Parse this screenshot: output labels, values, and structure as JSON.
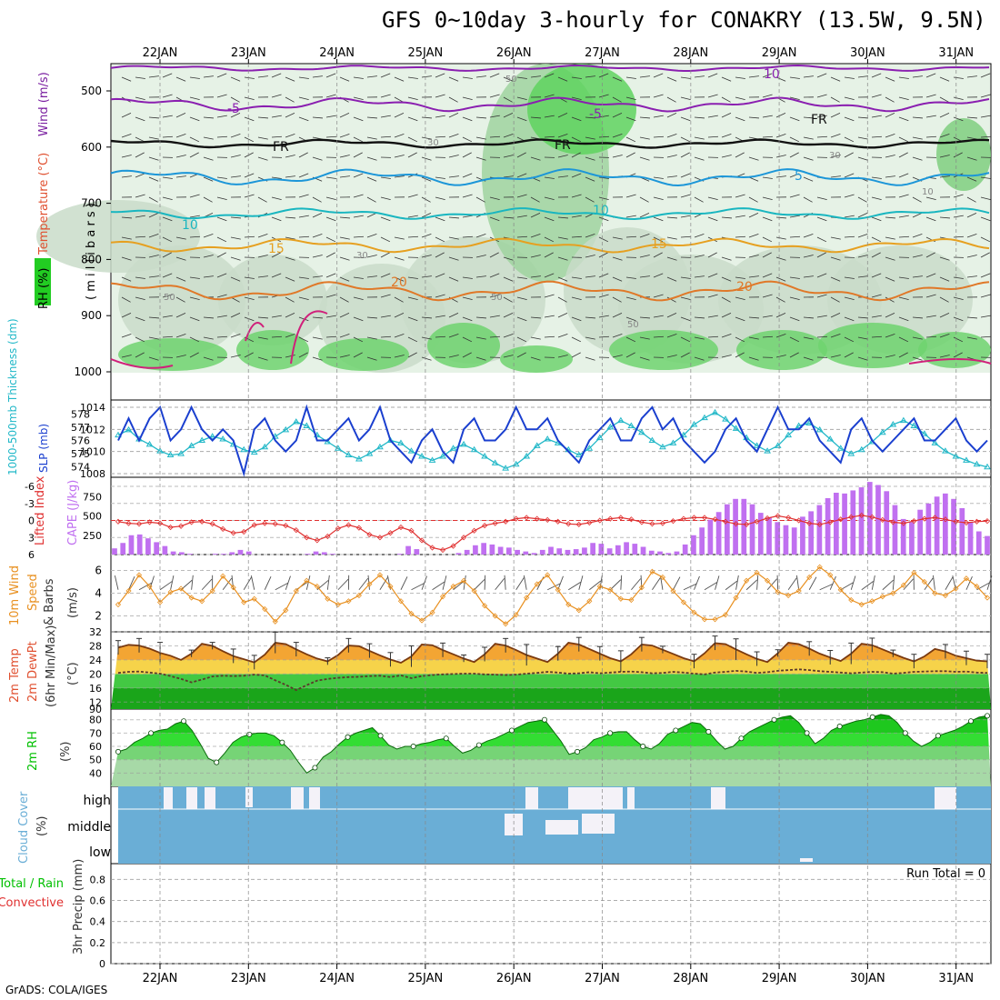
{
  "title": "GFS 0~10day 3-hourly for CONAKRY (13.5W, 9.5N)",
  "credit": "GrADS: COLA/IGES",
  "colors": {
    "slp": "#1a3fcf",
    "thickness": "#22b8c8",
    "li": "#e03030",
    "cape": "#c070f0",
    "wind_speed": "#e89020",
    "barb": "#505050",
    "temp_line": "#7a3a10",
    "rh_green": "#00c000",
    "cloud_blue": "#6aaed6",
    "cloud_white": "#f4f2f8",
    "label_rh": "#22aa22",
    "label_temp": "#e05030",
    "label_wind": "#7a1fa0"
  },
  "chart_data": {
    "type": "meteogram",
    "x_dates": [
      "22JAN",
      "23JAN",
      "24JAN",
      "25JAN",
      "26JAN",
      "27JAN",
      "28JAN",
      "29JAN",
      "30JAN",
      "31JAN"
    ],
    "panels": [
      {
        "id": "upper_air",
        "ylabel_parts": [
          "RH (%)",
          "Temperature (°C)",
          "Wind (m/s)",
          "( m i l l i b a r s )"
        ],
        "y_ticks": [
          500,
          600,
          700,
          800,
          900,
          1000
        ],
        "contour_labels": [
          {
            "text": "-5",
            "color": "purple"
          },
          {
            "text": "-5",
            "color": "purple"
          },
          {
            "text": "10",
            "color": "purple"
          },
          {
            "text": "FR",
            "color": "black"
          },
          {
            "text": "FR",
            "color": "black"
          },
          {
            "text": "FR",
            "color": "black"
          },
          {
            "text": "5",
            "color": "blue"
          },
          {
            "text": "10",
            "color": "teal"
          },
          {
            "text": "10",
            "color": "teal"
          },
          {
            "text": "15",
            "color": "orange"
          },
          {
            "text": "15",
            "color": "orange"
          },
          {
            "text": "20",
            "color": "darkorange"
          },
          {
            "text": "20",
            "color": "darkorange"
          },
          {
            "text": "50",
            "color": "gray"
          },
          {
            "text": "50",
            "color": "gray"
          },
          {
            "text": "50",
            "color": "gray"
          },
          {
            "text": "50",
            "color": "gray"
          },
          {
            "text": "30",
            "color": "gray"
          },
          {
            "text": "30",
            "color": "gray"
          },
          {
            "text": "30",
            "color": "gray"
          },
          {
            "text": "10",
            "color": "gray"
          }
        ]
      },
      {
        "id": "slp_thickness",
        "ylabel_left": "1000-500mb Thickness (dm)",
        "ylabel_right": "SLP (mb)",
        "thick_ticks": [
          574,
          575,
          576,
          577,
          578
        ],
        "slp_ticks": [
          1008,
          1010,
          1012,
          1014
        ],
        "slp": [
          1011,
          1013,
          1011,
          1013,
          1014,
          1011,
          1012,
          1014,
          1012,
          1011,
          1012,
          1011,
          1008,
          1012,
          1013,
          1011,
          1010,
          1011,
          1014,
          1011,
          1011,
          1012,
          1013,
          1011,
          1012,
          1014,
          1011,
          1010,
          1009,
          1011,
          1012,
          1010,
          1009,
          1012,
          1013,
          1011,
          1011,
          1012,
          1014,
          1012,
          1012,
          1013,
          1011,
          1010,
          1009,
          1011,
          1012,
          1013,
          1011,
          1011,
          1013,
          1014,
          1012,
          1013,
          1011,
          1010,
          1009,
          1010,
          1012,
          1013,
          1011,
          1010,
          1012,
          1014,
          1012,
          1012,
          1013,
          1011,
          1010,
          1009,
          1012,
          1013,
          1011,
          1010,
          1011,
          1012,
          1013,
          1011,
          1011,
          1012,
          1013,
          1011,
          1010,
          1011
        ],
        "thickness": [
          576.4,
          576.8,
          576.1,
          575.7,
          575.2,
          574.9,
          575.0,
          575.6,
          576.0,
          576.3,
          576.1,
          575.7,
          575.3,
          575.1,
          575.5,
          576.3,
          576.8,
          577.4,
          577.1,
          576.4,
          575.9,
          575.4,
          574.9,
          574.6,
          575.0,
          575.5,
          576.0,
          575.8,
          575.2,
          574.8,
          574.5,
          574.8,
          575.4,
          575.7,
          575.3,
          574.8,
          574.3,
          573.9,
          574.2,
          574.8,
          575.6,
          576.1,
          575.8,
          575.3,
          574.9,
          575.4,
          576.2,
          577.0,
          577.5,
          577.1,
          576.6,
          576.0,
          575.5,
          575.8,
          576.4,
          577.2,
          577.7,
          578.1,
          577.6,
          576.9,
          576.2,
          575.6,
          575.2,
          575.6,
          576.4,
          577.1,
          577.3,
          576.8,
          576.1,
          575.4,
          575.0,
          575.3,
          575.9,
          576.6,
          577.2,
          577.5,
          577.1,
          576.5,
          575.8,
          575.2,
          574.8,
          574.5,
          574.2,
          574.0
        ]
      },
      {
        "id": "li_cape",
        "ylabel_left": "Lifted Index",
        "ylabel_right": "CAPE (J/kg)",
        "li_ticks": [
          -6,
          -3,
          0,
          3,
          6
        ],
        "cape_ticks": [
          250,
          500,
          750
        ],
        "li": [
          0.2,
          0.5,
          0.6,
          0.3,
          0.5,
          1.2,
          1.0,
          0.3,
          0.2,
          0.6,
          1.5,
          2.2,
          2.0,
          0.8,
          0.5,
          0.6,
          0.9,
          1.7,
          3.0,
          3.5,
          2.8,
          1.4,
          0.8,
          1.3,
          2.5,
          3.0,
          2.2,
          1.2,
          1.8,
          3.5,
          4.8,
          5.2,
          4.5,
          3.0,
          1.8,
          0.9,
          0.5,
          0.2,
          -0.3,
          -0.5,
          -0.3,
          -0.1,
          0.2,
          0.6,
          0.7,
          0.4,
          0.0,
          -0.3,
          -0.5,
          -0.2,
          0.3,
          0.6,
          0.5,
          0.1,
          -0.3,
          -0.5,
          -0.5,
          -0.2,
          0.2,
          0.6,
          0.7,
          0.2,
          -0.4,
          -0.8,
          -0.5,
          0.0,
          0.5,
          0.7,
          0.3,
          -0.2,
          -0.6,
          -0.9,
          -0.6,
          -0.1,
          0.3,
          0.5,
          0.1,
          -0.3,
          -0.5,
          -0.2,
          0.2,
          0.4,
          0.2,
          0.1
        ],
        "cape": [
          80,
          150,
          250,
          260,
          210,
          160,
          110,
          40,
          30,
          10,
          0,
          0,
          10,
          10,
          30,
          60,
          40,
          0,
          0,
          0,
          0,
          0,
          0,
          10,
          40,
          30,
          10,
          0,
          0,
          0,
          0,
          0,
          0,
          0,
          10,
          110,
          70,
          0,
          0,
          0,
          0,
          20,
          60,
          120,
          150,
          130,
          100,
          90,
          60,
          40,
          20,
          60,
          100,
          80,
          60,
          70,
          90,
          150,
          140,
          80,
          120,
          160,
          140,
          100,
          50,
          40,
          20,
          40,
          130,
          250,
          350,
          450,
          550,
          650,
          720,
          720,
          650,
          540,
          480,
          420,
          380,
          350,
          490,
          560,
          640,
          730,
          800,
          790,
          830,
          870,
          940,
          900,
          820,
          640,
          460,
          420,
          580,
          660,
          750,
          790,
          720,
          600,
          420,
          300,
          240
        ]
      },
      {
        "id": "wind10m",
        "ylabel_parts": [
          "10m Wind",
          "Speed",
          "& Barbs",
          "(m/s)"
        ],
        "y_ticks": [
          2,
          4,
          6
        ],
        "speed": [
          3.0,
          4.2,
          5.6,
          4.6,
          3.2,
          4.1,
          4.4,
          3.6,
          3.3,
          4.2,
          5.5,
          4.5,
          3.2,
          3.5,
          2.6,
          1.5,
          2.5,
          4.2,
          5.1,
          4.6,
          3.5,
          3.0,
          3.3,
          3.8,
          4.8,
          5.6,
          4.6,
          3.3,
          2.2,
          1.6,
          2.3,
          3.7,
          4.6,
          5.1,
          4.2,
          2.9,
          2.0,
          1.3,
          2.1,
          3.6,
          4.8,
          5.6,
          4.3,
          3.0,
          2.5,
          3.3,
          4.6,
          4.3,
          3.5,
          3.4,
          4.5,
          5.9,
          5.4,
          4.2,
          3.2,
          2.3,
          1.7,
          1.7,
          2.1,
          3.6,
          5.1,
          5.8,
          5.1,
          4.1,
          3.8,
          4.2,
          5.4,
          6.3,
          5.6,
          4.3,
          3.4,
          3.0,
          3.3,
          3.7,
          4.0,
          4.7,
          5.8,
          5.0,
          4.0,
          3.8,
          4.4,
          5.3,
          4.6,
          3.6
        ]
      },
      {
        "id": "temp2m",
        "ylabel_parts": [
          "2m Temp",
          "2m DewPt",
          "(6hr Min/Max)",
          "(°C)"
        ],
        "y_ticks": [
          12,
          16,
          20,
          24,
          28,
          32
        ],
        "temp": [
          27.5,
          28.3,
          28.1,
          27.2,
          26.0,
          25.2,
          24.0,
          25.8,
          28.6,
          28.0,
          26.5,
          25.1,
          24.2,
          23.3,
          25.5,
          28.9,
          28.5,
          27.0,
          25.6,
          24.4,
          23.6,
          25.4,
          28.1,
          27.9,
          26.6,
          25.3,
          24.1,
          23.2,
          25.0,
          28.4,
          28.2,
          26.8,
          25.6,
          24.4,
          23.4,
          25.6,
          28.6,
          28.1,
          26.8,
          25.4,
          24.4,
          23.4,
          25.8,
          28.9,
          28.4,
          27.1,
          25.8,
          24.5,
          23.6,
          25.6,
          28.4,
          28.1,
          26.9,
          25.7,
          24.5,
          23.6,
          25.9,
          28.8,
          28.5,
          27.0,
          25.6,
          24.3,
          23.4,
          25.9,
          28.9,
          28.5,
          27.2,
          25.8,
          24.7,
          23.7,
          25.8,
          28.6,
          28.2,
          27.0,
          25.8,
          24.6,
          23.6,
          25.0,
          27.1,
          26.4,
          25.2,
          24.5,
          23.8,
          23.6
        ],
        "dewpt": [
          20.3,
          20.6,
          20.7,
          20.4,
          20.1,
          19.4,
          18.6,
          17.6,
          18.4,
          19.3,
          19.5,
          19.4,
          19.5,
          19.8,
          19.6,
          18.2,
          16.9,
          15.4,
          16.8,
          18.1,
          18.6,
          18.9,
          19.1,
          19.2,
          19.4,
          19.5,
          19.1,
          19.6,
          18.8,
          19.4,
          19.7,
          19.9,
          20.0,
          20.1,
          20.1,
          19.9,
          19.8,
          19.7,
          19.8,
          20.1,
          20.3,
          20.6,
          20.4,
          20.1,
          20.2,
          20.5,
          20.2,
          20.4,
          20.6,
          20.7,
          20.5,
          20.2,
          20.3,
          20.6,
          20.4,
          20.1,
          19.9,
          20.4,
          20.6,
          20.9,
          20.7,
          20.3,
          20.5,
          20.9,
          21.1,
          21.3,
          21.1,
          20.8,
          20.6,
          20.4,
          20.2,
          20.4,
          20.6,
          20.5,
          20.1,
          20.3,
          20.6,
          20.7,
          20.8,
          20.8,
          20.6,
          20.7,
          20.4,
          20.3
        ],
        "maxmin_err": [
          2,
          2,
          3,
          1,
          1,
          2,
          2,
          3,
          2,
          1,
          2,
          2,
          2,
          3,
          2,
          1,
          2,
          2,
          3,
          2,
          2,
          2,
          3,
          2,
          1,
          2,
          2,
          3,
          2,
          1,
          2,
          2,
          3,
          2,
          1,
          2,
          2,
          2,
          2
        ]
      },
      {
        "id": "rh2m",
        "ylabel_parts": [
          "2m RH",
          "(%)"
        ],
        "y_ticks": [
          40,
          50,
          60,
          70,
          80
        ],
        "rh": [
          56,
          58,
          63,
          66,
          70,
          72,
          73,
          77,
          79,
          72,
          62,
          51,
          48,
          55,
          63,
          67,
          69,
          70,
          70,
          68,
          63,
          57,
          48,
          40,
          44,
          52,
          56,
          62,
          67,
          70,
          72,
          74,
          68,
          61,
          58,
          60,
          60,
          62,
          63,
          65,
          66,
          60,
          55,
          57,
          61,
          64,
          66,
          69,
          72,
          75,
          78,
          79,
          80,
          72,
          64,
          54,
          56,
          59,
          65,
          67,
          70,
          71,
          71,
          65,
          60,
          58,
          62,
          69,
          72,
          75,
          78,
          77,
          71,
          64,
          58,
          60,
          66,
          71,
          74,
          77,
          80,
          82,
          83,
          78,
          70,
          62,
          66,
          72,
          75,
          77,
          79,
          80,
          82,
          84,
          83,
          78,
          70,
          64,
          60,
          63,
          68,
          70,
          72,
          75,
          79,
          82,
          83
        ]
      },
      {
        "id": "cloud",
        "ylabel_parts": [
          "Cloud Cover",
          "(%)"
        ],
        "levels": [
          "high",
          "middle",
          "low"
        ]
      },
      {
        "id": "precip",
        "ylabel_parts": [
          "Total / Rain",
          "Convective",
          "3hr Precip (mm)"
        ],
        "y_ticks": [
          "0",
          "0.2",
          "0.4",
          "0.6",
          "0.8"
        ],
        "run_total": "Run Total = 0",
        "values": []
      }
    ]
  }
}
